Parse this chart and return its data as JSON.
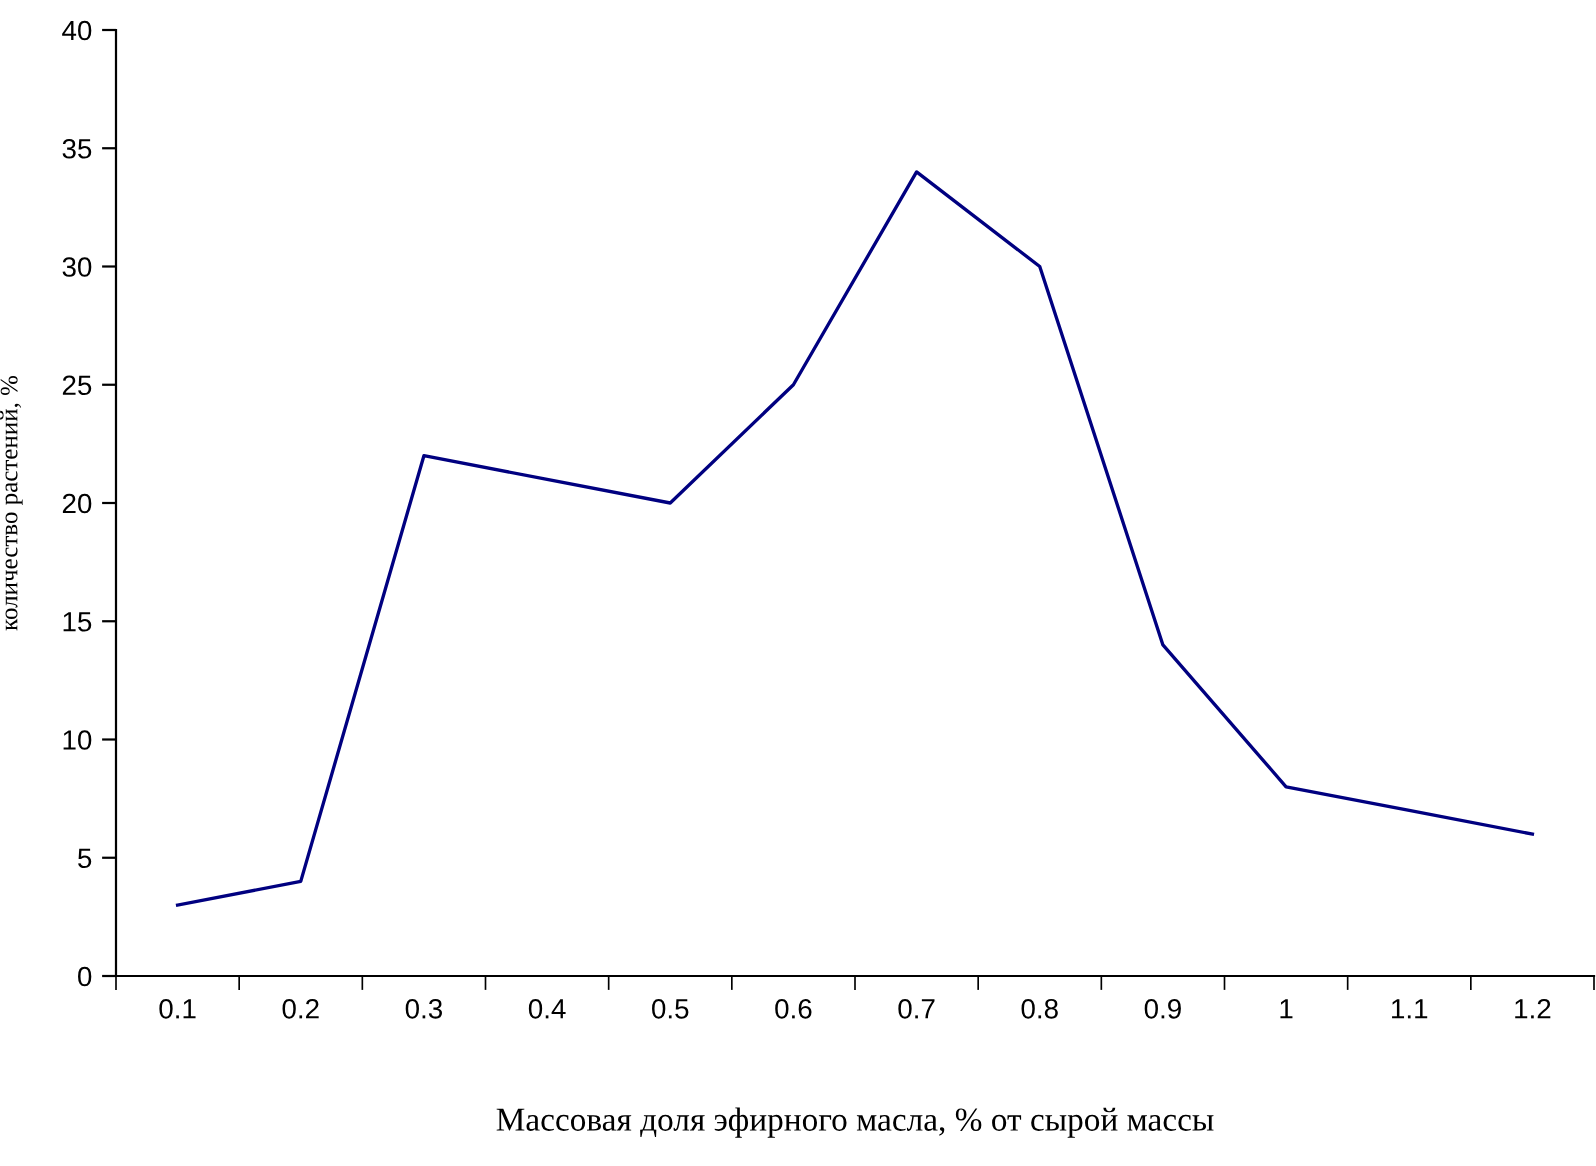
{
  "chart_data": {
    "type": "line",
    "xlabel": "Массовая доля эфирного масла, % от сырой массы",
    "ylabel": "количество растений, %",
    "categories": [
      "0.1",
      "0.2",
      "0.3",
      "0.4",
      "0.5",
      "0.6",
      "0.7",
      "0.8",
      "0.9",
      "1",
      "1.1",
      "1.2"
    ],
    "series": [
      {
        "color": "#000080",
        "values": [
          3,
          4,
          22,
          21,
          20,
          25,
          34,
          30,
          14,
          8,
          7,
          6
        ]
      }
    ],
    "ylim": [
      0,
      40
    ],
    "yticks": [
      0,
      5,
      10,
      15,
      20,
      25,
      30,
      35,
      40
    ],
    "grid": false,
    "legend": false,
    "marker": "none",
    "line_style": "solid"
  }
}
